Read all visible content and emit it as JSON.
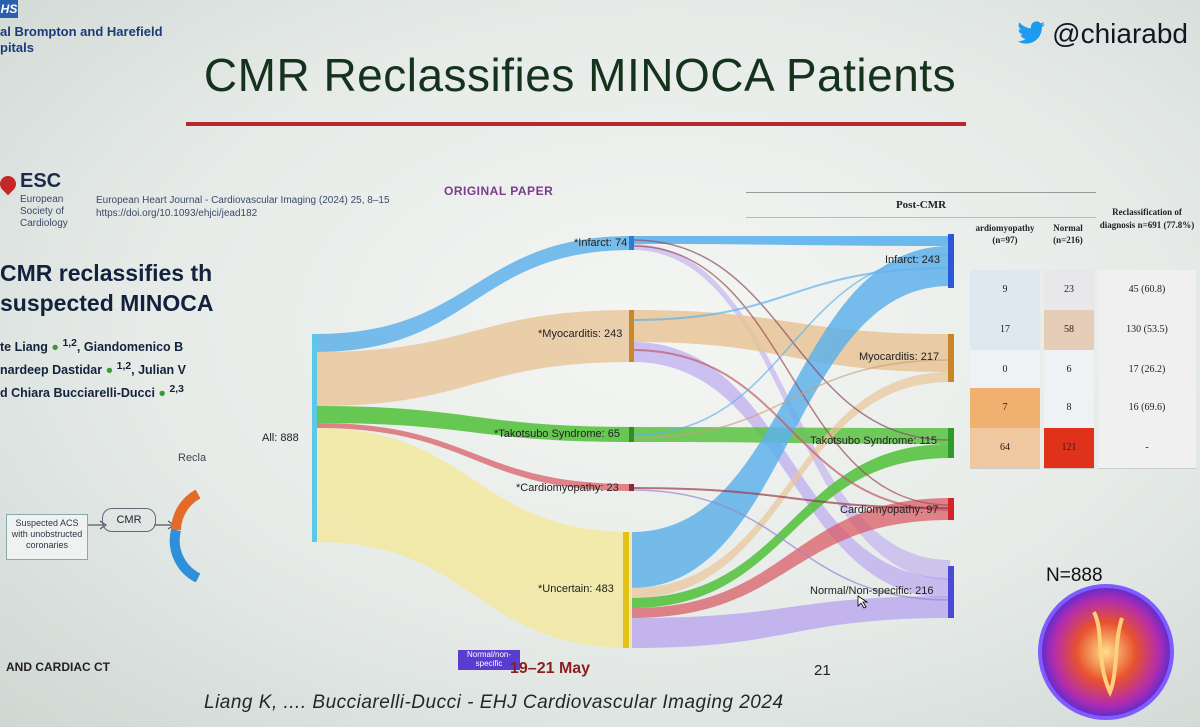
{
  "slide": {
    "org_lines": [
      "al Brompton and Harefield",
      "pitals"
    ],
    "nhs": "HS",
    "twitter_handle": "@chiarabd",
    "title": "CMR Reclassifies MINOCA Patients",
    "esc": {
      "name": "ESC",
      "sub": "European Society of Cardiology"
    },
    "journal": [
      "European Heart Journal - Cardiovascular Imaging (2024) 25, 8–15",
      "https://doi.org/10.1093/ehjci/jead182"
    ],
    "original_paper": "ORIGINAL PAPER",
    "paper_title": [
      "CMR reclassifies th",
      "suspected MINOCA"
    ],
    "authors": [
      "te Liang",
      "1,2",
      ", Giandomenico B",
      "nardeep Dastidar",
      "1,2",
      ", Julian V",
      "Chiara Bucciarelli-Ducci",
      "2,3"
    ],
    "diagram_box": "Suspected ACS with unobstructed coronaries",
    "cmr_label": "CMR",
    "reclass_partial": "Recla",
    "bottom_left": "AND CARDIAC CT",
    "date": "19–21 May",
    "page_number": "21",
    "citation": "Liang K, .... Bucciarelli-Ducci -  EHJ Cardiovascular Imaging 2024",
    "n_total": "N=888",
    "normal_badge": "Normal/non-specific"
  },
  "sankey": {
    "source": "All: 888",
    "pre": [
      "*Infarct: 74",
      "*Myocarditis: 243",
      "*Takotsubo Syndrome: 65",
      "*Cardiomyopathy: 23",
      "*Uncertain: 483"
    ],
    "post": [
      "Infarct: 243",
      "Myocarditis: 217",
      "Takotsubo Syndrome: 115",
      "Cardiomyopathy: 97",
      "Normal/Non-specific: 216"
    ]
  },
  "post_cmr_table": {
    "header": "Post-CMR",
    "columns": [
      "ardiomyopathy (n=97)",
      "Normal (n=216)",
      "Reclassification of diagnosis n=691 (77.8%)"
    ],
    "rows": [
      [
        "9",
        "23",
        "45 (60.8)"
      ],
      [
        "17",
        "58",
        "130 (53.5)"
      ],
      [
        "0",
        "6",
        "17 (26.2)"
      ],
      [
        "7",
        "8",
        "16 (69.6)"
      ],
      [
        "64",
        "121",
        "-"
      ]
    ]
  },
  "colors": {
    "infarct": "#5fb2ea",
    "myocarditis": "#e8c498",
    "takotsubo": "#58c241",
    "cardiomyopathy": "#d9545e",
    "normal": "#b39cf0",
    "uncertain": "#f2e9a0",
    "source": "#5cc8e8",
    "title_rule": "#b7282e"
  }
}
